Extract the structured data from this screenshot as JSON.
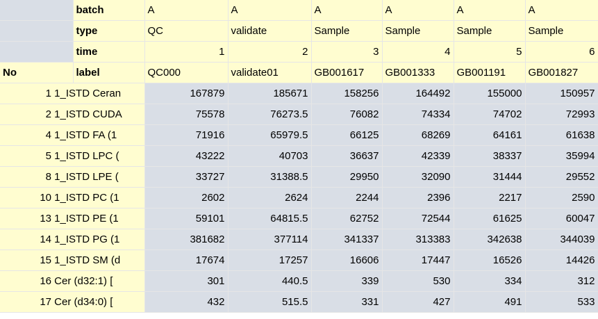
{
  "header": {
    "no_label": "No",
    "row_labels": [
      "batch",
      "type",
      "time",
      "label"
    ],
    "columns": [
      {
        "batch": "A",
        "type": "QC",
        "time": "1",
        "label": "QC000"
      },
      {
        "batch": "A",
        "type": "validate",
        "time": "2",
        "label": "validate01"
      },
      {
        "batch": "A",
        "type": "Sample",
        "time": "3",
        "label": "GB001617"
      },
      {
        "batch": "A",
        "type": "Sample",
        "time": "4",
        "label": "GB001333"
      },
      {
        "batch": "A",
        "type": "Sample",
        "time": "5",
        "label": "GB001191"
      },
      {
        "batch": "A",
        "type": "Sample",
        "time": "6",
        "label": "GB001827"
      }
    ]
  },
  "rows": [
    {
      "no": "1",
      "name": "1_ISTD Ceran",
      "values": [
        "167879",
        "185671",
        "158256",
        "164492",
        "155000",
        "150957"
      ]
    },
    {
      "no": "2",
      "name": "1_ISTD CUDA",
      "values": [
        "75578",
        "76273.5",
        "76082",
        "74334",
        "74702",
        "72993"
      ]
    },
    {
      "no": "4",
      "name": "1_ISTD FA (1",
      "values": [
        "71916",
        "65979.5",
        "66125",
        "68269",
        "64161",
        "61638"
      ]
    },
    {
      "no": "5",
      "name": "1_ISTD LPC (",
      "values": [
        "43222",
        "40703",
        "36637",
        "42339",
        "38337",
        "35994"
      ]
    },
    {
      "no": "8",
      "name": "1_ISTD LPE (",
      "values": [
        "33727",
        "31388.5",
        "29950",
        "32090",
        "31444",
        "29552"
      ]
    },
    {
      "no": "10",
      "name": "1_ISTD PC (1",
      "values": [
        "2602",
        "2624",
        "2244",
        "2396",
        "2217",
        "2590"
      ]
    },
    {
      "no": "13",
      "name": "1_ISTD PE (1",
      "values": [
        "59101",
        "64815.5",
        "62752",
        "72544",
        "61625",
        "60047"
      ]
    },
    {
      "no": "14",
      "name": "1_ISTD PG (1",
      "values": [
        "381682",
        "377114",
        "341337",
        "313383",
        "342638",
        "344039"
      ]
    },
    {
      "no": "15",
      "name": "1_ISTD SM (d",
      "values": [
        "17674",
        "17257",
        "16606",
        "17447",
        "16526",
        "14426"
      ]
    },
    {
      "no": "16",
      "name": "Cer (d32:1) [",
      "values": [
        "301",
        "440.5",
        "339",
        "530",
        "334",
        "312"
      ]
    },
    {
      "no": "17",
      "name": "Cer (d34:0) [",
      "values": [
        "432",
        "515.5",
        "331",
        "427",
        "491",
        "533"
      ]
    }
  ]
}
